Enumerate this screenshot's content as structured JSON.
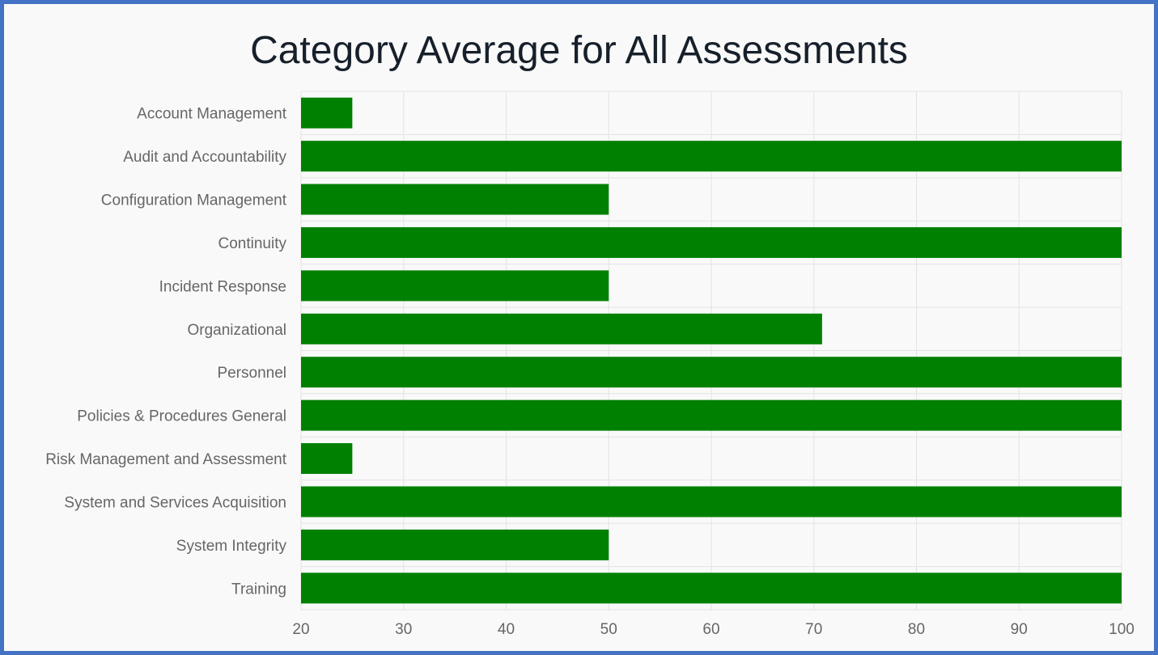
{
  "chart_data": {
    "type": "bar",
    "orientation": "horizontal",
    "title": "Category Average for All Assessments",
    "categories": [
      "Account Management",
      "Audit and Accountability",
      "Configuration Management",
      "Continuity",
      "Incident Response",
      "Organizational",
      "Personnel",
      "Policies & Procedures General",
      "Risk Management and Assessment",
      "System and Services Acquisition",
      "System Integrity",
      "Training"
    ],
    "values": [
      25,
      100,
      50,
      100,
      50,
      70.8,
      100,
      100,
      25,
      100,
      50,
      100
    ],
    "xlim": [
      20,
      100
    ],
    "xticks": [
      20,
      30,
      40,
      50,
      60,
      70,
      80,
      90,
      100
    ],
    "grid": true,
    "colors": {
      "bar": "#008000",
      "grid": "#e3e3e3",
      "tick_text": "#666666",
      "title": "#17202a",
      "border": "#4472c4",
      "background": "#f9f9fa"
    }
  }
}
